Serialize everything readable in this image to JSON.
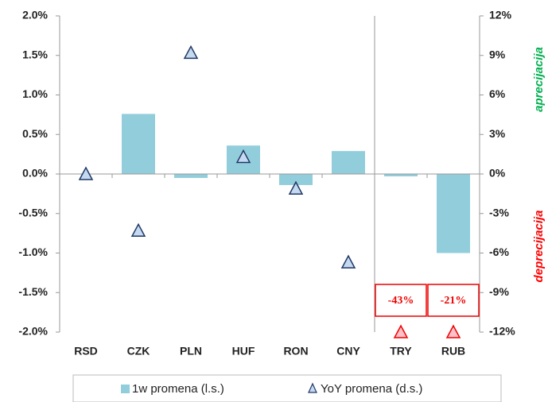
{
  "chart_data": {
    "type": "bar_triangle",
    "categories": [
      "RSD",
      "CZK",
      "PLN",
      "HUF",
      "RON",
      "CNY",
      "TRY",
      "RUB"
    ],
    "series": [
      {
        "name": "1w promena (l.s.)",
        "color": "#92cddc",
        "values": [
          0,
          0.76,
          -0.05,
          0.36,
          -0.14,
          0.29,
          -0.03,
          -1.0
        ]
      },
      {
        "name": "YoY promena (d.s.)",
        "color": "#1f3864",
        "axis": "y2",
        "values": [
          0,
          -4.3,
          9.2,
          1.3,
          -1.1,
          -6.7,
          -43,
          -21
        ],
        "value_labels": [
          null,
          null,
          null,
          null,
          null,
          null,
          "-43%",
          "-21%"
        ]
      }
    ],
    "ylim": [
      -2.0,
      2.0
    ],
    "yticks": [
      {
        "value": -2.0,
        "label": "-2.0%"
      },
      {
        "value": -1.5,
        "label": "-1.5%"
      },
      {
        "value": -1.0,
        "label": "-1.0%"
      },
      {
        "value": -0.5,
        "label": "-0.5%"
      },
      {
        "value": 0.0,
        "label": "0.0%"
      },
      {
        "value": 0.5,
        "label": "0.5%"
      },
      {
        "value": 1.0,
        "label": "1.0%"
      },
      {
        "value": 1.5,
        "label": "1.5%"
      },
      {
        "value": 2.0,
        "label": "2.0%"
      }
    ],
    "y2lim": [
      -12,
      12
    ],
    "y2ticks": [
      {
        "value": -12,
        "label": "-12%"
      },
      {
        "value": -9,
        "label": "-9%"
      },
      {
        "value": -6,
        "label": "-6%"
      },
      {
        "value": -3,
        "label": "-3%"
      },
      {
        "value": 0,
        "label": "0%"
      },
      {
        "value": 3,
        "label": "3%"
      },
      {
        "value": 6,
        "label": "6%"
      },
      {
        "value": 9,
        "label": "9%"
      },
      {
        "value": 12,
        "label": "12%"
      }
    ],
    "annotations": [
      {
        "text": "aprecijacija",
        "color": "#00b050"
      },
      {
        "text": "deprecijacija",
        "color": "#ff0000"
      }
    ]
  }
}
